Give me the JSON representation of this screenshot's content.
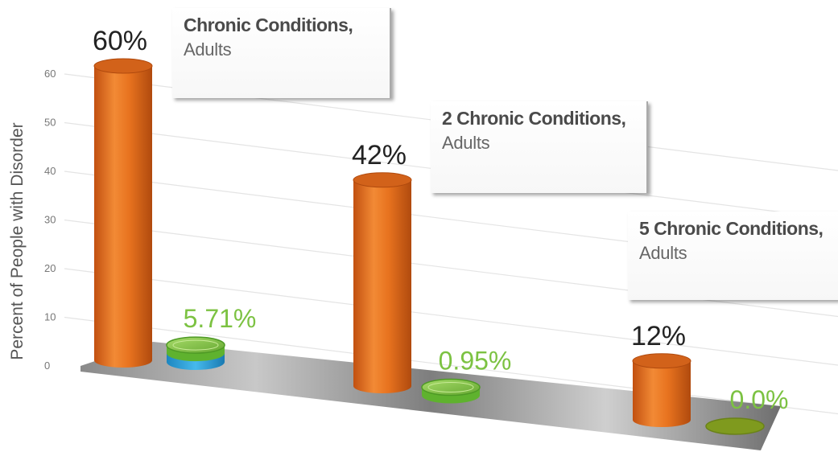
{
  "chart_data": {
    "type": "bar",
    "ylabel": "Percent of People with Disorder",
    "xlabel": "",
    "ylim": [
      0,
      60
    ],
    "yticks": [
      0,
      10,
      20,
      30,
      40,
      50,
      60
    ],
    "categories": [
      {
        "line1": "Chronic Conditions,",
        "line2": "Adults"
      },
      {
        "line1": "2 Chronic Conditions,",
        "line2": "Adults"
      },
      {
        "line1": "5 Chronic Conditions,",
        "line2": "Adults"
      }
    ],
    "series": [
      {
        "values": [
          60,
          42,
          12
        ],
        "labels": [
          "60%",
          "42%",
          "12%"
        ],
        "color": "#e8731f"
      },
      {
        "values": [
          5.71,
          0.95,
          0.0
        ],
        "labels": [
          "5.71%",
          "0.95%",
          "0.0%"
        ],
        "color": "#7cc242"
      }
    ],
    "accent_colors": {
      "secondary_base": "#2ba6de",
      "label_dark": "#222222",
      "label_green": "#7cc242"
    },
    "grid": true
  }
}
